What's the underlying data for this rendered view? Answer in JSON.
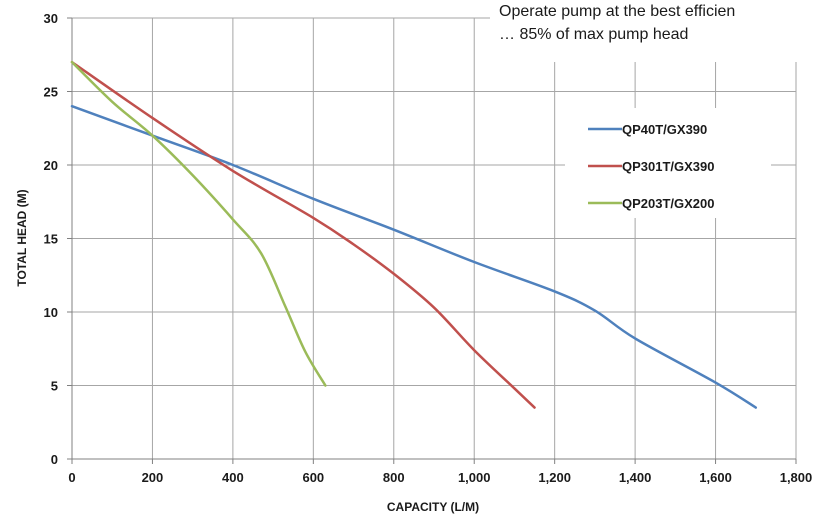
{
  "chart_data": {
    "type": "line",
    "title": "",
    "xlabel": "CAPACITY (L/M)",
    "ylabel": "TOTAL HEAD (M)",
    "xlim": [
      0,
      1800
    ],
    "ylim": [
      0,
      30
    ],
    "xticks": [
      0,
      200,
      400,
      600,
      800,
      1000,
      1200,
      1400,
      1600,
      1800
    ],
    "xtick_labels": [
      "0",
      "200",
      "400",
      "600",
      "800",
      "1,000",
      "1,200",
      "1,400",
      "1,600",
      "1,800"
    ],
    "yticks": [
      0,
      5,
      10,
      15,
      20,
      25,
      30
    ],
    "ytick_labels": [
      "0",
      "5",
      "10",
      "15",
      "20",
      "25",
      "30"
    ],
    "grid": true,
    "legend_position": "right",
    "annotation": [
      "Operate pump at the best efficien",
      "… 85% of max pump head"
    ],
    "series": [
      {
        "name": "QP40T/GX390",
        "color": "#4F81BD",
        "points": [
          [
            0,
            24
          ],
          [
            200,
            22
          ],
          [
            400,
            20
          ],
          [
            600,
            17.7
          ],
          [
            800,
            15.6
          ],
          [
            1000,
            13.4
          ],
          [
            1200,
            11.4
          ],
          [
            1300,
            10.1
          ],
          [
            1400,
            8.2
          ],
          [
            1600,
            5.2
          ],
          [
            1700,
            3.5
          ]
        ]
      },
      {
        "name": "QP301T/GX390",
        "color": "#C0504D",
        "points": [
          [
            0,
            27
          ],
          [
            200,
            23.2
          ],
          [
            400,
            19.6
          ],
          [
            600,
            16.4
          ],
          [
            700,
            14.6
          ],
          [
            800,
            12.6
          ],
          [
            900,
            10.3
          ],
          [
            1000,
            7.4
          ],
          [
            1100,
            4.8
          ],
          [
            1150,
            3.5
          ]
        ]
      },
      {
        "name": "QP203T/GX200",
        "color": "#9BBB59",
        "points": [
          [
            0,
            27
          ],
          [
            100,
            24.3
          ],
          [
            200,
            22
          ],
          [
            300,
            19.3
          ],
          [
            400,
            16.3
          ],
          [
            470,
            14
          ],
          [
            530,
            10.4
          ],
          [
            580,
            7.3
          ],
          [
            630,
            5
          ]
        ]
      }
    ]
  }
}
